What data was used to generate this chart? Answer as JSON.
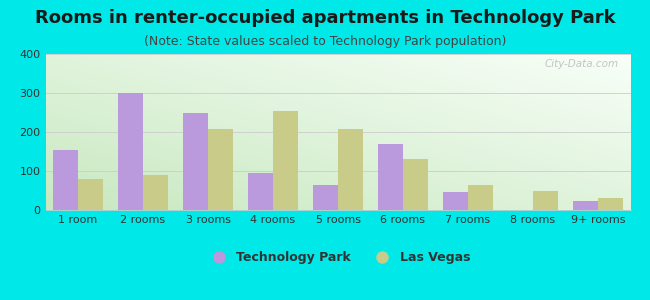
{
  "title": "Rooms in renter-occupied apartments in Technology Park",
  "subtitle": "(Note: State values scaled to Technology Park population)",
  "categories": [
    "1 room",
    "2 rooms",
    "3 rooms",
    "4 rooms",
    "5 rooms",
    "6 rooms",
    "7 rooms",
    "8 rooms",
    "9+ rooms"
  ],
  "tech_park_values": [
    155,
    300,
    250,
    95,
    65,
    170,
    45,
    0,
    22
  ],
  "las_vegas_values": [
    80,
    90,
    208,
    255,
    208,
    130,
    65,
    50,
    32
  ],
  "tech_park_color": "#bb99dd",
  "las_vegas_color": "#c8cc88",
  "background_color": "#00e8e8",
  "ylim": [
    0,
    400
  ],
  "yticks": [
    0,
    100,
    200,
    300,
    400
  ],
  "legend_tech_park": "Technology Park",
  "legend_las_vegas": "Las Vegas",
  "title_fontsize": 13,
  "subtitle_fontsize": 9,
  "watermark": "City-Data.com"
}
